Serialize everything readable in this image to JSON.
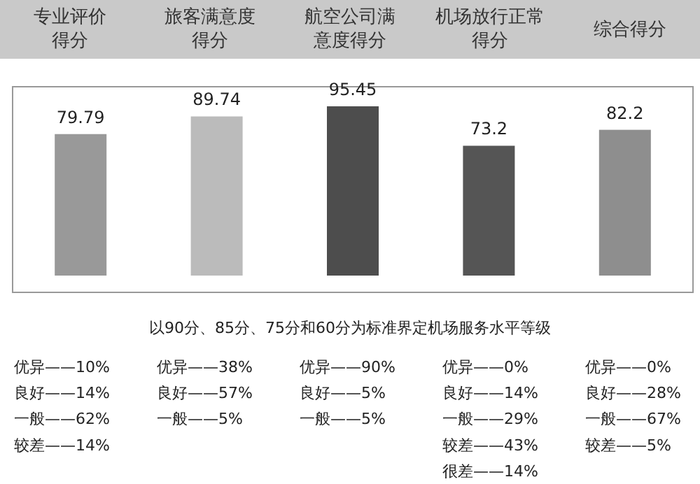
{
  "chart_data": {
    "type": "bar",
    "categories": [
      "专业评价得分",
      "旅客满意度得分",
      "航空公司满意度得分",
      "机场放行正常得分",
      "综合得分"
    ],
    "values": [
      79.79,
      89.74,
      95.45,
      73.2,
      82.2
    ],
    "colors": [
      "#999999",
      "#bbbbbb",
      "#4d4d4d",
      "#555555",
      "#8e8e8e"
    ],
    "data_labels": true,
    "annotations": [
      "以90分、85分、75分和60分为标准界定机场服务水平等级",
      "优异——10%\n良好——14%\n一般——62%\n较差——14%",
      "优异——38%\n良好——57%\n一般——5%",
      "优异——90%\n良好——5%\n一般——5%",
      "优异——0%\n良好——14%\n一般——29%\n较差——43%\n很差——14%",
      "优异——0%\n良好——28%\n一般——67%\n较差——5%"
    ]
  }
}
